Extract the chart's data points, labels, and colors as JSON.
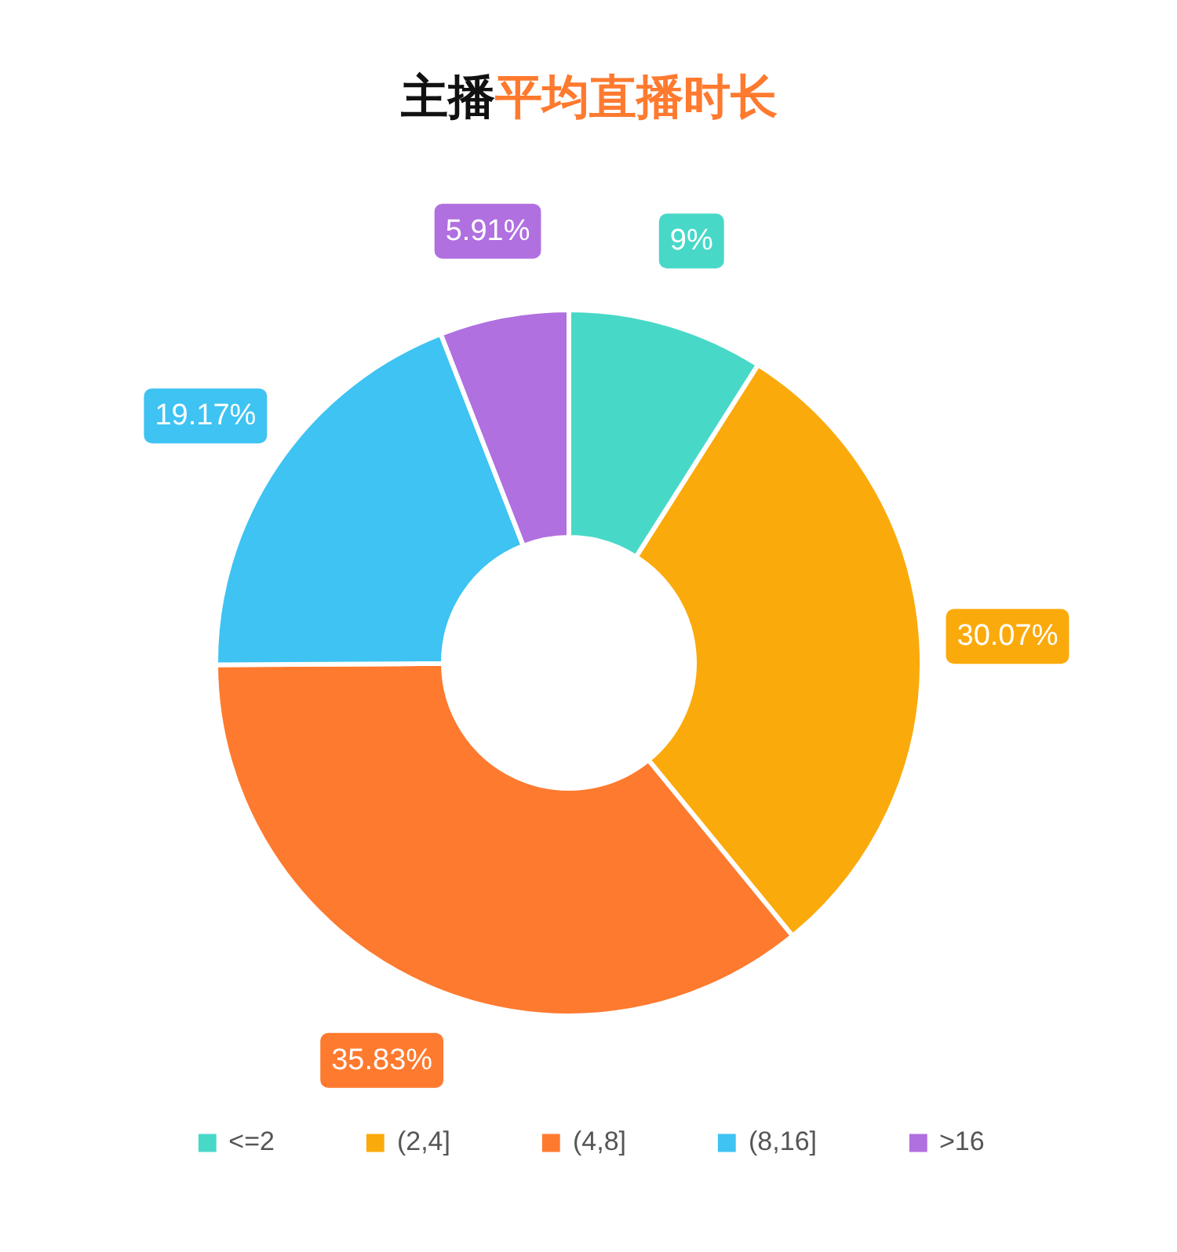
{
  "chart_data": {
    "type": "donut",
    "title": "主播平均直播时长",
    "categories": [
      "<=2",
      "(2,4]",
      "(4,8]",
      "(8,16]",
      ">16"
    ],
    "values": [
      9,
      30.07,
      35.83,
      19.17,
      5.91
    ],
    "value_labels": [
      "9%",
      "30.07%",
      "35.83%",
      "19.17%",
      "5.91%"
    ],
    "colors": [
      "#48d8c8",
      "#fbaa0c",
      "#fe7a2f",
      "#3ec3f2",
      "#b070e0"
    ],
    "legend": "bottom"
  }
}
